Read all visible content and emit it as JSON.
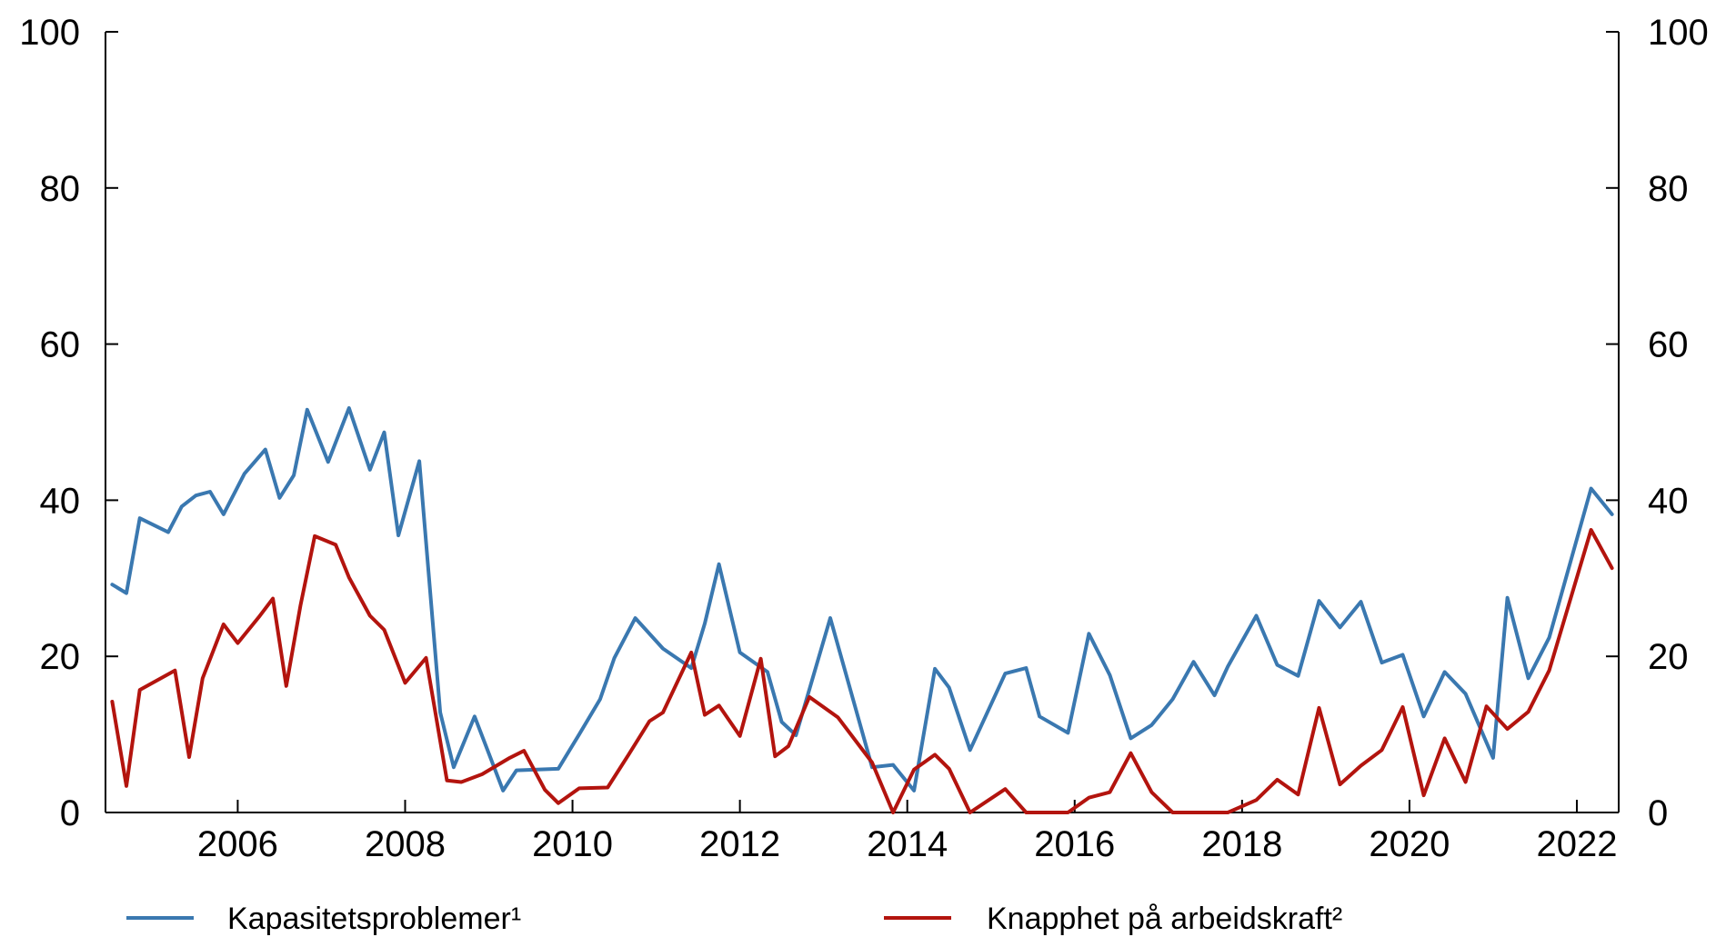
{
  "chart_data": {
    "type": "line",
    "title": "",
    "xlabel": "",
    "ylabel": "",
    "ylim": [
      0,
      100
    ],
    "xlim": [
      2004.42,
      2022.5
    ],
    "grid": false,
    "legend_position": "bottom",
    "y_ticks": [
      "0",
      "20",
      "40",
      "60",
      "80",
      "100"
    ],
    "y_tick_values": [
      0,
      20,
      40,
      60,
      80,
      100
    ],
    "x_ticks": [
      "2006",
      "2008",
      "2010",
      "2012",
      "2014",
      "2016",
      "2018",
      "2020",
      "2022"
    ],
    "x_tick_values": [
      2006,
      2008,
      2010,
      2012,
      2014,
      2016,
      2018,
      2020,
      2022
    ],
    "series": [
      {
        "name": "Kapasitetsproblemer¹",
        "color": "#3a78b0",
        "values": [
          [
            2004.5,
            29.2
          ],
          [
            2004.67,
            28.1
          ],
          [
            2004.83,
            37.7
          ],
          [
            2005.17,
            35.9
          ],
          [
            2005.33,
            39.2
          ],
          [
            2005.5,
            40.6
          ],
          [
            2005.67,
            41.1
          ],
          [
            2005.83,
            38.2
          ],
          [
            2006.08,
            43.4
          ],
          [
            2006.33,
            46.5
          ],
          [
            2006.5,
            40.3
          ],
          [
            2006.67,
            43.2
          ],
          [
            2006.83,
            51.6
          ],
          [
            2007.08,
            44.9
          ],
          [
            2007.33,
            51.8
          ],
          [
            2007.58,
            43.9
          ],
          [
            2007.75,
            48.7
          ],
          [
            2007.92,
            35.5
          ],
          [
            2008.17,
            45.0
          ],
          [
            2008.42,
            12.8
          ],
          [
            2008.58,
            5.8
          ],
          [
            2008.83,
            12.3
          ],
          [
            2009.17,
            2.8
          ],
          [
            2009.33,
            5.4
          ],
          [
            2009.83,
            5.6
          ],
          [
            2010.08,
            10.0
          ],
          [
            2010.33,
            14.5
          ],
          [
            2010.5,
            19.8
          ],
          [
            2010.75,
            24.9
          ],
          [
            2011.08,
            21.0
          ],
          [
            2011.42,
            18.5
          ],
          [
            2011.58,
            24.2
          ],
          [
            2011.75,
            31.8
          ],
          [
            2012.0,
            20.5
          ],
          [
            2012.33,
            18.0
          ],
          [
            2012.5,
            11.6
          ],
          [
            2012.67,
            9.9
          ],
          [
            2013.08,
            24.9
          ],
          [
            2013.58,
            5.8
          ],
          [
            2013.83,
            6.1
          ],
          [
            2014.08,
            2.8
          ],
          [
            2014.33,
            18.4
          ],
          [
            2014.5,
            16.0
          ],
          [
            2014.75,
            8.0
          ],
          [
            2015.17,
            17.8
          ],
          [
            2015.42,
            18.5
          ],
          [
            2015.58,
            12.3
          ],
          [
            2015.92,
            10.2
          ],
          [
            2016.17,
            22.9
          ],
          [
            2016.42,
            17.6
          ],
          [
            2016.67,
            9.5
          ],
          [
            2016.92,
            11.2
          ],
          [
            2017.17,
            14.5
          ],
          [
            2017.42,
            19.3
          ],
          [
            2017.67,
            15.0
          ],
          [
            2017.83,
            18.7
          ],
          [
            2018.17,
            25.2
          ],
          [
            2018.42,
            18.9
          ],
          [
            2018.67,
            17.5
          ],
          [
            2018.92,
            27.1
          ],
          [
            2019.17,
            23.7
          ],
          [
            2019.42,
            27.0
          ],
          [
            2019.67,
            19.2
          ],
          [
            2019.92,
            20.2
          ],
          [
            2020.17,
            12.3
          ],
          [
            2020.42,
            18.0
          ],
          [
            2020.67,
            15.2
          ],
          [
            2021.0,
            7.0
          ],
          [
            2021.17,
            27.5
          ],
          [
            2021.42,
            17.2
          ],
          [
            2021.67,
            22.4
          ],
          [
            2022.17,
            41.5
          ],
          [
            2022.42,
            38.2
          ]
        ]
      },
      {
        "name": "Knapphet på arbeidskraft²",
        "color": "#b3140e",
        "values": [
          [
            2004.5,
            14.2
          ],
          [
            2004.67,
            3.4
          ],
          [
            2004.83,
            15.7
          ],
          [
            2005.25,
            18.2
          ],
          [
            2005.42,
            7.1
          ],
          [
            2005.58,
            17.2
          ],
          [
            2005.83,
            24.1
          ],
          [
            2006.0,
            21.7
          ],
          [
            2006.25,
            25.0
          ],
          [
            2006.42,
            27.4
          ],
          [
            2006.58,
            16.2
          ],
          [
            2006.75,
            26.5
          ],
          [
            2006.92,
            35.4
          ],
          [
            2007.17,
            34.3
          ],
          [
            2007.33,
            30.1
          ],
          [
            2007.58,
            25.2
          ],
          [
            2007.75,
            23.4
          ],
          [
            2008.0,
            16.6
          ],
          [
            2008.25,
            19.8
          ],
          [
            2008.5,
            4.1
          ],
          [
            2008.67,
            3.9
          ],
          [
            2008.92,
            4.9
          ],
          [
            2009.25,
            7.0
          ],
          [
            2009.42,
            7.9
          ],
          [
            2009.67,
            2.9
          ],
          [
            2009.83,
            1.2
          ],
          [
            2010.08,
            3.1
          ],
          [
            2010.42,
            3.2
          ],
          [
            2010.67,
            7.4
          ],
          [
            2010.92,
            11.7
          ],
          [
            2011.08,
            12.8
          ],
          [
            2011.42,
            20.5
          ],
          [
            2011.58,
            12.5
          ],
          [
            2011.75,
            13.7
          ],
          [
            2012.0,
            9.8
          ],
          [
            2012.25,
            19.7
          ],
          [
            2012.42,
            7.2
          ],
          [
            2012.58,
            8.5
          ],
          [
            2012.83,
            14.8
          ],
          [
            2013.17,
            12.2
          ],
          [
            2013.58,
            6.4
          ],
          [
            2013.83,
            0.0
          ],
          [
            2014.08,
            5.5
          ],
          [
            2014.33,
            7.4
          ],
          [
            2014.5,
            5.6
          ],
          [
            2014.75,
            0.0
          ],
          [
            2015.17,
            3.0
          ],
          [
            2015.42,
            0.0
          ],
          [
            2015.67,
            0.0
          ],
          [
            2015.92,
            0.0
          ],
          [
            2016.17,
            1.9
          ],
          [
            2016.42,
            2.6
          ],
          [
            2016.67,
            7.6
          ],
          [
            2016.92,
            2.6
          ],
          [
            2017.17,
            0.0
          ],
          [
            2017.42,
            0.0
          ],
          [
            2017.67,
            0.0
          ],
          [
            2017.83,
            0.0
          ],
          [
            2018.17,
            1.6
          ],
          [
            2018.42,
            4.2
          ],
          [
            2018.67,
            2.3
          ],
          [
            2018.92,
            13.4
          ],
          [
            2019.17,
            3.6
          ],
          [
            2019.42,
            6.0
          ],
          [
            2019.67,
            8.0
          ],
          [
            2019.92,
            13.5
          ],
          [
            2020.17,
            2.2
          ],
          [
            2020.42,
            9.5
          ],
          [
            2020.67,
            3.9
          ],
          [
            2020.92,
            13.6
          ],
          [
            2021.17,
            10.7
          ],
          [
            2021.42,
            12.9
          ],
          [
            2021.67,
            18.2
          ],
          [
            2022.17,
            36.2
          ],
          [
            2022.42,
            31.3
          ]
        ]
      }
    ]
  }
}
